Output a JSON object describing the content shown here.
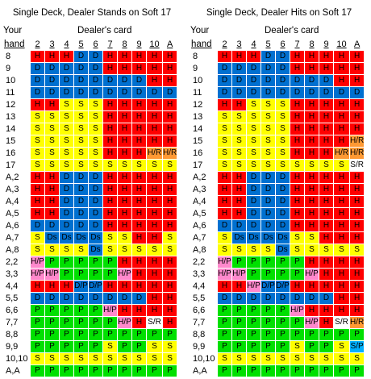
{
  "left": {
    "title": "Single Deck, Dealer Stands on Soft 17",
    "your_label": "Your",
    "hand_label": "hand",
    "dealer_label": "Dealer's card",
    "columns": [
      "2",
      "3",
      "4",
      "5",
      "6",
      "7",
      "8",
      "9",
      "10",
      "A"
    ],
    "rows": [
      {
        "hand": "8",
        "cells": [
          "H",
          "H",
          "H",
          "D",
          "D",
          "H",
          "H",
          "H",
          "H",
          "H"
        ]
      },
      {
        "hand": "9",
        "cells": [
          "D",
          "D",
          "D",
          "D",
          "D",
          "H",
          "H",
          "H",
          "H",
          "H"
        ]
      },
      {
        "hand": "10",
        "cells": [
          "D",
          "D",
          "D",
          "D",
          "D",
          "D",
          "D",
          "D",
          "H",
          "H"
        ]
      },
      {
        "hand": "11",
        "cells": [
          "D",
          "D",
          "D",
          "D",
          "D",
          "D",
          "D",
          "D",
          "D",
          "D"
        ]
      },
      {
        "hand": "12",
        "cells": [
          "H",
          "H",
          "S",
          "S",
          "S",
          "H",
          "H",
          "H",
          "H",
          "H"
        ]
      },
      {
        "hand": "13",
        "cells": [
          "S",
          "S",
          "S",
          "S",
          "S",
          "H",
          "H",
          "H",
          "H",
          "H"
        ]
      },
      {
        "hand": "14",
        "cells": [
          "S",
          "S",
          "S",
          "S",
          "S",
          "H",
          "H",
          "H",
          "H",
          "H"
        ]
      },
      {
        "hand": "15",
        "cells": [
          "S",
          "S",
          "S",
          "S",
          "S",
          "H",
          "H",
          "H",
          "H",
          "H"
        ]
      },
      {
        "hand": "16",
        "cells": [
          "S",
          "S",
          "S",
          "S",
          "S",
          "H",
          "H",
          "H",
          "H/R",
          "H/R"
        ]
      },
      {
        "hand": "17",
        "cells": [
          "S",
          "S",
          "S",
          "S",
          "S",
          "S",
          "S",
          "S",
          "S",
          "S"
        ]
      },
      {
        "hand": "A,2",
        "cells": [
          "H",
          "H",
          "D",
          "D",
          "D",
          "H",
          "H",
          "H",
          "H",
          "H"
        ]
      },
      {
        "hand": "A,3",
        "cells": [
          "H",
          "H",
          "D",
          "D",
          "D",
          "H",
          "H",
          "H",
          "H",
          "H"
        ]
      },
      {
        "hand": "A,4",
        "cells": [
          "H",
          "H",
          "D",
          "D",
          "D",
          "H",
          "H",
          "H",
          "H",
          "H"
        ]
      },
      {
        "hand": "A,5",
        "cells": [
          "H",
          "H",
          "D",
          "D",
          "D",
          "H",
          "H",
          "H",
          "H",
          "H"
        ]
      },
      {
        "hand": "A,6",
        "cells": [
          "D",
          "D",
          "D",
          "D",
          "D",
          "H",
          "H",
          "H",
          "H",
          "H"
        ]
      },
      {
        "hand": "A,7",
        "cells": [
          "S",
          "Ds",
          "Ds",
          "Ds",
          "Ds",
          "S",
          "S",
          "H",
          "H",
          "S"
        ]
      },
      {
        "hand": "A,8",
        "cells": [
          "S",
          "S",
          "S",
          "S",
          "Ds",
          "S",
          "S",
          "S",
          "S",
          "S"
        ]
      },
      {
        "hand": "2,2",
        "cells": [
          "H/P",
          "P",
          "P",
          "P",
          "P",
          "P",
          "H",
          "H",
          "H",
          "H"
        ]
      },
      {
        "hand": "3,3",
        "cells": [
          "H/P",
          "H/P",
          "P",
          "P",
          "P",
          "P",
          "H/P",
          "H",
          "H",
          "H"
        ]
      },
      {
        "hand": "4,4",
        "cells": [
          "H",
          "H",
          "H",
          "D/P",
          "D/P",
          "H",
          "H",
          "H",
          "H",
          "H"
        ]
      },
      {
        "hand": "5,5",
        "cells": [
          "D",
          "D",
          "D",
          "D",
          "D",
          "D",
          "D",
          "D",
          "H",
          "H"
        ]
      },
      {
        "hand": "6,6",
        "cells": [
          "P",
          "P",
          "P",
          "P",
          "P",
          "H/P",
          "H",
          "H",
          "H",
          "H"
        ]
      },
      {
        "hand": "7,7",
        "cells": [
          "P",
          "P",
          "P",
          "P",
          "P",
          "P",
          "H/P",
          "H",
          "S/R",
          "H"
        ]
      },
      {
        "hand": "8,8",
        "cells": [
          "P",
          "P",
          "P",
          "P",
          "P",
          "P",
          "P",
          "P",
          "P",
          "P"
        ]
      },
      {
        "hand": "9,9",
        "cells": [
          "P",
          "P",
          "P",
          "P",
          "P",
          "S",
          "P",
          "P",
          "S",
          "S"
        ]
      },
      {
        "hand": "10,10",
        "cells": [
          "S",
          "S",
          "S",
          "S",
          "S",
          "S",
          "S",
          "S",
          "S",
          "S"
        ]
      },
      {
        "hand": "A,A",
        "cells": [
          "P",
          "P",
          "P",
          "P",
          "P",
          "P",
          "P",
          "P",
          "P",
          "P"
        ]
      }
    ]
  },
  "right": {
    "title": "Single Deck, Dealer Hits on Soft 17",
    "your_label": "Your",
    "hand_label": "hand",
    "dealer_label": "Dealer's card",
    "columns": [
      "2",
      "3",
      "4",
      "5",
      "6",
      "7",
      "8",
      "9",
      "10",
      "A"
    ],
    "rows": [
      {
        "hand": "8",
        "cells": [
          "H",
          "H",
          "H",
          "D",
          "D",
          "H",
          "H",
          "H",
          "H",
          "H"
        ]
      },
      {
        "hand": "9",
        "cells": [
          "D",
          "D",
          "D",
          "D",
          "D",
          "H",
          "H",
          "H",
          "H",
          "H"
        ]
      },
      {
        "hand": "10",
        "cells": [
          "D",
          "D",
          "D",
          "D",
          "D",
          "D",
          "D",
          "D",
          "H",
          "H"
        ]
      },
      {
        "hand": "11",
        "cells": [
          "D",
          "D",
          "D",
          "D",
          "D",
          "D",
          "D",
          "D",
          "D",
          "D"
        ]
      },
      {
        "hand": "12",
        "cells": [
          "H",
          "H",
          "S",
          "S",
          "S",
          "H",
          "H",
          "H",
          "H",
          "H"
        ]
      },
      {
        "hand": "13",
        "cells": [
          "S",
          "S",
          "S",
          "S",
          "S",
          "H",
          "H",
          "H",
          "H",
          "H"
        ]
      },
      {
        "hand": "14",
        "cells": [
          "S",
          "S",
          "S",
          "S",
          "S",
          "H",
          "H",
          "H",
          "H",
          "H"
        ]
      },
      {
        "hand": "15",
        "cells": [
          "S",
          "S",
          "S",
          "S",
          "S",
          "H",
          "H",
          "H",
          "H",
          "H/R"
        ]
      },
      {
        "hand": "16",
        "cells": [
          "S",
          "S",
          "S",
          "S",
          "S",
          "H",
          "H",
          "H",
          "H/R",
          "H/R"
        ]
      },
      {
        "hand": "17",
        "cells": [
          "S",
          "S",
          "S",
          "S",
          "S",
          "S",
          "S",
          "S",
          "S",
          "S/R"
        ]
      },
      {
        "hand": "A,2",
        "cells": [
          "H",
          "H",
          "D",
          "D",
          "D",
          "H",
          "H",
          "H",
          "H",
          "H"
        ]
      },
      {
        "hand": "A,3",
        "cells": [
          "H",
          "H",
          "D",
          "D",
          "D",
          "H",
          "H",
          "H",
          "H",
          "H"
        ]
      },
      {
        "hand": "A,4",
        "cells": [
          "H",
          "H",
          "D",
          "D",
          "D",
          "H",
          "H",
          "H",
          "H",
          "H"
        ]
      },
      {
        "hand": "A,5",
        "cells": [
          "H",
          "H",
          "D",
          "D",
          "D",
          "H",
          "H",
          "H",
          "H",
          "H"
        ]
      },
      {
        "hand": "A,6",
        "cells": [
          "D",
          "D",
          "D",
          "D",
          "D",
          "H",
          "H",
          "H",
          "H",
          "H"
        ]
      },
      {
        "hand": "A,7",
        "cells": [
          "S",
          "Ds",
          "Ds",
          "Ds",
          "Ds",
          "S",
          "S",
          "H",
          "H",
          "H"
        ]
      },
      {
        "hand": "A,8",
        "cells": [
          "S",
          "S",
          "S",
          "S",
          "Ds",
          "S",
          "S",
          "S",
          "S",
          "S"
        ]
      },
      {
        "hand": "2,2",
        "cells": [
          "H/P",
          "P",
          "P",
          "P",
          "P",
          "P",
          "H",
          "H",
          "H",
          "H"
        ]
      },
      {
        "hand": "3,3",
        "cells": [
          "H/P",
          "H/P",
          "P",
          "P",
          "P",
          "P",
          "H/P",
          "H",
          "H",
          "H"
        ]
      },
      {
        "hand": "4,4",
        "cells": [
          "H",
          "H",
          "H/P",
          "D/P",
          "D/P",
          "H",
          "H",
          "H",
          "H",
          "H"
        ]
      },
      {
        "hand": "5,5",
        "cells": [
          "D",
          "D",
          "D",
          "D",
          "D",
          "D",
          "D",
          "D",
          "H",
          "H"
        ]
      },
      {
        "hand": "6,6",
        "cells": [
          "P",
          "P",
          "P",
          "P",
          "P",
          "H/P",
          "H",
          "H",
          "H",
          "H"
        ]
      },
      {
        "hand": "7,7",
        "cells": [
          "P",
          "P",
          "P",
          "P",
          "P",
          "P",
          "H/P",
          "H",
          "S/R",
          "H/R"
        ]
      },
      {
        "hand": "8,8",
        "cells": [
          "P",
          "P",
          "P",
          "P",
          "P",
          "P",
          "P",
          "P",
          "P",
          "P"
        ]
      },
      {
        "hand": "9,9",
        "cells": [
          "P",
          "P",
          "P",
          "P",
          "P",
          "S",
          "P",
          "P",
          "S",
          "S/P"
        ]
      },
      {
        "hand": "10,10",
        "cells": [
          "S",
          "S",
          "S",
          "S",
          "S",
          "S",
          "S",
          "S",
          "S",
          "S"
        ]
      },
      {
        "hand": "A,A",
        "cells": [
          "P",
          "P",
          "P",
          "P",
          "P",
          "P",
          "P",
          "P",
          "P",
          "P"
        ]
      }
    ]
  },
  "colors": {
    "H": "#ff0000",
    "S": "#ffff00",
    "D": "#0070d0",
    "Ds": "#0070d0",
    "P": "#00e000",
    "H/P": "#ff88cc",
    "D/P": "#0070d0",
    "H/R": "#ff9933",
    "S/R": "#ffffff",
    "S/P": "#00b0ff"
  }
}
